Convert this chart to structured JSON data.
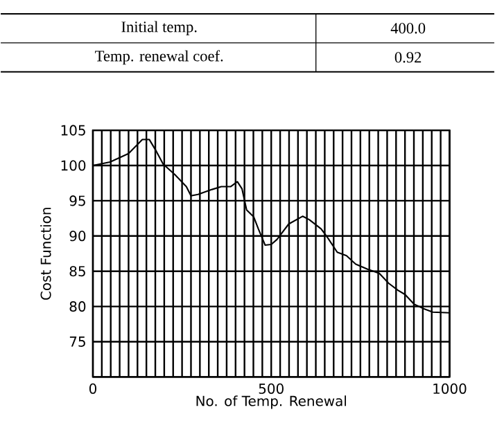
{
  "chart_data": {
    "type": "line",
    "xlabel": "No. of Temp. Renewal",
    "ylabel": "Cost Function",
    "annotations": [
      "Initial temp.",
      "400.0",
      "Temp. renewal coef.",
      "0.92"
    ],
    "x": [
      0,
      48,
      100,
      139,
      158,
      178,
      197,
      230,
      262,
      275,
      295,
      334,
      360,
      386,
      405,
      418,
      431,
      451,
      464,
      483,
      500,
      516,
      549,
      588,
      607,
      640,
      659,
      685,
      711,
      737,
      770,
      803,
      829,
      855,
      875,
      901,
      927,
      953,
      1000
    ],
    "series": [
      {
        "color": "#000000",
        "values": [
          100,
          100.5,
          101.7,
          103.7,
          103.7,
          102,
          100.2,
          98.7,
          97,
          95.7,
          95.9,
          96.6,
          97,
          97,
          97.7,
          96.7,
          93.7,
          92.7,
          91,
          88.7,
          88.8,
          89.5,
          91.7,
          92.8,
          92.3,
          91,
          89.7,
          87.7,
          87.2,
          86,
          85.3,
          84.7,
          83.3,
          82.3,
          81.7,
          80.3,
          79.7,
          79.2,
          79.1
        ]
      }
    ],
    "xlim": [
      0,
      1000
    ],
    "ylim": [
      70,
      105
    ],
    "xticks": [
      0,
      {
        "value": 25,
        "label": null
      },
      {
        "value": 50,
        "label": null
      },
      {
        "value": 75,
        "label": null
      },
      {
        "value": 100,
        "label": null
      },
      {
        "value": 125,
        "label": null
      },
      {
        "value": 150,
        "label": null
      },
      {
        "value": 175,
        "label": null
      },
      {
        "value": 200,
        "label": null
      },
      {
        "value": 225,
        "label": null
      },
      {
        "value": 250,
        "label": null
      },
      {
        "value": 275,
        "label": null
      },
      {
        "value": 300,
        "label": null
      },
      {
        "value": 325,
        "label": null
      },
      {
        "value": 350,
        "label": null
      },
      {
        "value": 375,
        "label": null
      },
      {
        "value": 400,
        "label": null
      },
      {
        "value": 425,
        "label": null
      },
      {
        "value": 450,
        "label": null
      },
      {
        "value": 475,
        "label": null
      },
      500,
      {
        "value": 525,
        "label": null
      },
      {
        "value": 550,
        "label": null
      },
      {
        "value": 575,
        "label": null
      },
      {
        "value": 600,
        "label": null
      },
      {
        "value": 625,
        "label": null
      },
      {
        "value": 650,
        "label": null
      },
      {
        "value": 675,
        "label": null
      },
      {
        "value": 700,
        "label": null
      },
      {
        "value": 725,
        "label": null
      },
      {
        "value": 750,
        "label": null
      },
      {
        "value": 775,
        "label": null
      },
      {
        "value": 800,
        "label": null
      },
      {
        "value": 825,
        "label": null
      },
      {
        "value": 850,
        "label": null
      },
      {
        "value": 875,
        "label": null
      },
      {
        "value": 900,
        "label": null
      },
      {
        "value": 925,
        "label": null
      },
      {
        "value": 950,
        "label": null
      },
      {
        "value": 975,
        "label": null
      },
      1000
    ],
    "yticks": [
      {
        "value": 70,
        "label": null
      },
      75,
      80,
      85,
      90,
      95,
      100,
      105
    ],
    "grid": true,
    "marker": "none",
    "line_style": "solid"
  }
}
